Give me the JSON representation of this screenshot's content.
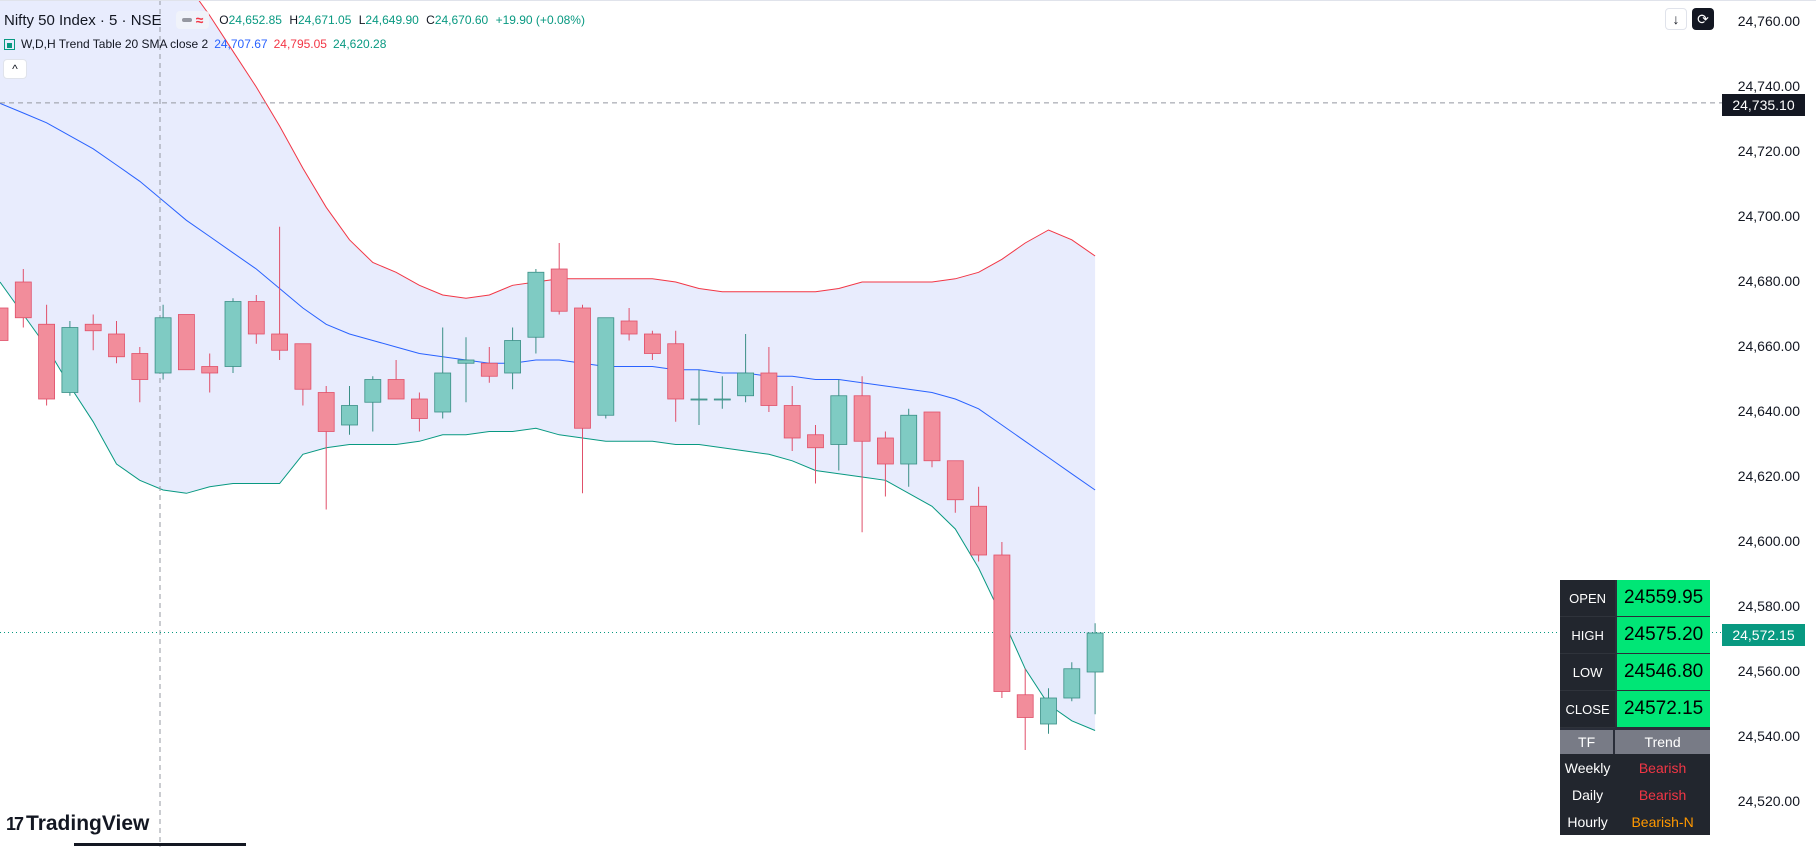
{
  "header": {
    "symbol": "Nifty 50 Index · 5 · NSE",
    "ohlc": {
      "open_label": "O",
      "open": "24,652.85",
      "high_label": "H",
      "high": "24,671.05",
      "low_label": "L",
      "low": "24,649.90",
      "close_label": "C",
      "close": "24,670.60",
      "change": "+19.90 (+0.08%)"
    }
  },
  "indicator": {
    "name": "W,D,H Trend Table 20 SMA close 2",
    "middle": "24,707.67",
    "upper": "24,795.05",
    "lower": "24,620.28"
  },
  "colors": {
    "bull": "#7fcbc3",
    "bear": "#f28d9b",
    "upper_band": "#f23645",
    "middle_band": "#2962ff",
    "lower_band": "#089981",
    "band_fill": "#e8ecfd"
  },
  "price_axis": {
    "labels": [
      "24,760.00",
      "24,740.00",
      "24,720.00",
      "24,700.00",
      "24,680.00",
      "24,660.00",
      "24,640.00",
      "24,620.00",
      "24,600.00",
      "24,580.00",
      "24,560.00",
      "24,540.00",
      "24,520.00"
    ],
    "crosshair_price": "24,735.10",
    "last_price": "24,572.15"
  },
  "toolbar": {
    "download_icon": "download-icon",
    "replay_icon": "cycle-icon"
  },
  "trend_table": {
    "rows": [
      {
        "label": "OPEN",
        "value": "24559.95"
      },
      {
        "label": "HIGH",
        "value": "24575.20"
      },
      {
        "label": "LOW",
        "value": "24546.80"
      },
      {
        "label": "CLOSE",
        "value": "24572.15"
      }
    ],
    "header_tf": "TF",
    "header_trend": "Trend",
    "trends": [
      {
        "tf": "Weekly",
        "trend": "Bearish"
      },
      {
        "tf": "Daily",
        "trend": "Bearish"
      },
      {
        "tf": "Hourly",
        "trend": "Bearish-N"
      }
    ]
  },
  "branding": {
    "logo_text": "TradingView"
  },
  "chart_data": {
    "type": "candlestick",
    "y_range": [
      24510,
      24764
    ],
    "crosshair_y": 24735.1,
    "last_price": 24572.15,
    "candles": [
      {
        "o": 24672,
        "h": 24672,
        "l": 24662,
        "c": 24662
      },
      {
        "o": 24680,
        "h": 24684,
        "l": 24666,
        "c": 24669
      },
      {
        "o": 24667,
        "h": 24673,
        "l": 24642,
        "c": 24644
      },
      {
        "o": 24646,
        "h": 24668,
        "l": 24645,
        "c": 24666
      },
      {
        "o": 24667,
        "h": 24670,
        "l": 24659,
        "c": 24665
      },
      {
        "o": 24664,
        "h": 24668,
        "l": 24655,
        "c": 24657
      },
      {
        "o": 24658,
        "h": 24660,
        "l": 24643,
        "c": 24650
      },
      {
        "o": 24652,
        "h": 24673,
        "l": 24650,
        "c": 24669
      },
      {
        "o": 24670,
        "h": 24670,
        "l": 24653,
        "c": 24653
      },
      {
        "o": 24654,
        "h": 24658,
        "l": 24646,
        "c": 24652
      },
      {
        "o": 24654,
        "h": 24675,
        "l": 24652,
        "c": 24674
      },
      {
        "o": 24674,
        "h": 24676,
        "l": 24661,
        "c": 24664
      },
      {
        "o": 24664,
        "h": 24697,
        "l": 24656,
        "c": 24659
      },
      {
        "o": 24661,
        "h": 24661,
        "l": 24642,
        "c": 24647
      },
      {
        "o": 24646,
        "h": 24648,
        "l": 24610,
        "c": 24634
      },
      {
        "o": 24636,
        "h": 24648,
        "l": 24633,
        "c": 24642
      },
      {
        "o": 24643,
        "h": 24651,
        "l": 24634,
        "c": 24650
      },
      {
        "o": 24650,
        "h": 24656,
        "l": 24644,
        "c": 24644
      },
      {
        "o": 24644,
        "h": 24646,
        "l": 24634,
        "c": 24638
      },
      {
        "o": 24640,
        "h": 24666,
        "l": 24638,
        "c": 24652
      },
      {
        "o": 24655,
        "h": 24663,
        "l": 24643,
        "c": 24656
      },
      {
        "o": 24655,
        "h": 24660,
        "l": 24649,
        "c": 24651
      },
      {
        "o": 24652,
        "h": 24666,
        "l": 24647,
        "c": 24662
      },
      {
        "o": 24663,
        "h": 24684,
        "l": 24658,
        "c": 24683
      },
      {
        "o": 24684,
        "h": 24692,
        "l": 24670,
        "c": 24671
      },
      {
        "o": 24672,
        "h": 24673,
        "l": 24615,
        "c": 24635
      },
      {
        "o": 24639,
        "h": 24669,
        "l": 24638,
        "c": 24669
      },
      {
        "o": 24668,
        "h": 24672,
        "l": 24662,
        "c": 24664
      },
      {
        "o": 24664,
        "h": 24665,
        "l": 24656,
        "c": 24658
      },
      {
        "o": 24661,
        "h": 24665,
        "l": 24637,
        "c": 24644
      },
      {
        "o": 24644,
        "h": 24653,
        "l": 24636,
        "c": 24644
      },
      {
        "o": 24644,
        "h": 24651,
        "l": 24641,
        "c": 24644
      },
      {
        "o": 24645,
        "h": 24664,
        "l": 24643,
        "c": 24652
      },
      {
        "o": 24652,
        "h": 24660,
        "l": 24640,
        "c": 24642
      },
      {
        "o": 24642,
        "h": 24648,
        "l": 24628,
        "c": 24632
      },
      {
        "o": 24633,
        "h": 24636,
        "l": 24618,
        "c": 24629
      },
      {
        "o": 24630,
        "h": 24650,
        "l": 24622,
        "c": 24645
      },
      {
        "o": 24645,
        "h": 24651,
        "l": 24603,
        "c": 24631
      },
      {
        "o": 24632,
        "h": 24634,
        "l": 24614,
        "c": 24624
      },
      {
        "o": 24624,
        "h": 24641,
        "l": 24617,
        "c": 24639
      },
      {
        "o": 24640,
        "h": 24640,
        "l": 24623,
        "c": 24625
      },
      {
        "o": 24625,
        "h": 24625,
        "l": 24609,
        "c": 24613
      },
      {
        "o": 24611,
        "h": 24617,
        "l": 24594,
        "c": 24596
      },
      {
        "o": 24596,
        "h": 24600,
        "l": 24552,
        "c": 24554
      },
      {
        "o": 24553,
        "h": 24561,
        "l": 24536,
        "c": 24546
      },
      {
        "o": 24544,
        "h": 24555,
        "l": 24541,
        "c": 24552
      },
      {
        "o": 24552,
        "h": 24563,
        "l": 24551,
        "c": 24561
      },
      {
        "o": 24560,
        "h": 24575,
        "l": 24547,
        "c": 24572
      }
    ],
    "upper_band": [
      24837,
      24831,
      24824,
      24817,
      24809,
      24800,
      24791,
      24782,
      24772,
      24762,
      24751,
      24740,
      24728,
      24715,
      24703,
      24693,
      24686,
      24683,
      24679,
      24676,
      24675,
      24676,
      24679,
      24680,
      24681,
      24681,
      24681,
      24681,
      24681,
      24680,
      24678,
      24677,
      24677,
      24677,
      24677,
      24677,
      24678,
      24680,
      24680,
      24680,
      24680,
      24681,
      24683,
      24687,
      24692,
      24696,
      24693,
      24688
    ],
    "middle_band": [
      24735,
      24732,
      24729,
      24725,
      24721,
      24716,
      24711,
      24705,
      24699,
      24694,
      24689,
      24684,
      24678,
      24672,
      24667,
      24664,
      24662,
      24660,
      24658,
      24657,
      24656,
      24655,
      24655,
      24656,
      24656,
      24655,
      24654,
      24654,
      24654,
      24653,
      24653,
      24652,
      24652,
      24651,
      24651,
      24650,
      24650,
      24649,
      24648,
      24647,
      24646,
      24644,
      24641,
      24636,
      24631,
      24626,
      24621,
      24616
    ],
    "lower_band": [
      24680,
      24670,
      24660,
      24648,
      24637,
      24624,
      24619,
      24616,
      24615,
      24617,
      24618,
      24618,
      24618,
      24627,
      24629,
      24630,
      24630,
      24630,
      24631,
      24633,
      24633,
      24634,
      24634,
      24635,
      24633,
      24632,
      24631,
      24631,
      24631,
      24630,
      24630,
      24629,
      24628,
      24627,
      24625,
      24622,
      24621,
      24620,
      24619,
      24615,
      24611,
      24604,
      24592,
      24577,
      24561,
      24550,
      24545,
      24542
    ]
  }
}
